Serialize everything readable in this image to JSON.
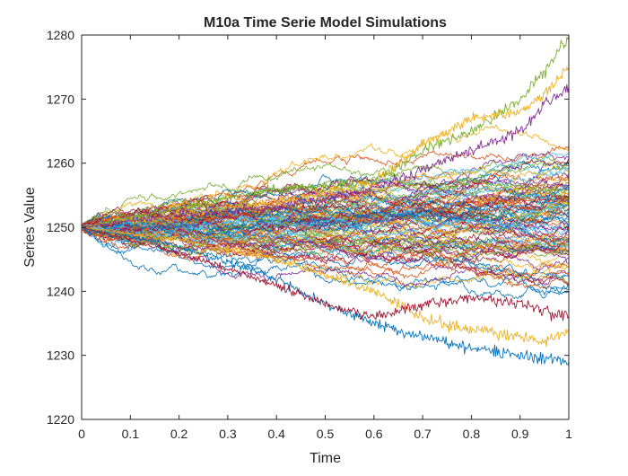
{
  "chart_data": {
    "type": "line",
    "title": "M10a Time Serie Model Simulations",
    "xlabel": "Time",
    "ylabel": "Series Value",
    "xlim": [
      0,
      1
    ],
    "ylim": [
      1220,
      1280
    ],
    "xticks": [
      "0",
      "0.1",
      "0.2",
      "0.3",
      "0.4",
      "0.5",
      "0.6",
      "0.7",
      "0.8",
      "0.9",
      "1"
    ],
    "yticks": [
      "1220",
      "1230",
      "1240",
      "1250",
      "1260",
      "1270",
      "1280"
    ],
    "grid": false,
    "legend": "none",
    "start_value": 1250,
    "series_count": 100,
    "colors": [
      "#0072BD",
      "#D95319",
      "#EDB120",
      "#7E2F8E",
      "#77AC30",
      "#4DBEEE",
      "#A2142F"
    ],
    "highlighted_paths": [
      {
        "color": "#77AC30",
        "x": [
          0,
          0.2,
          0.4,
          0.6,
          0.7,
          0.8,
          0.9,
          0.95,
          1.0
        ],
        "values": [
          1250,
          1253,
          1256,
          1257,
          1262,
          1265,
          1270,
          1274,
          1280
        ]
      },
      {
        "color": "#EDB120",
        "x": [
          0,
          0.2,
          0.4,
          0.6,
          0.7,
          0.8,
          0.9,
          0.95,
          1.0
        ],
        "values": [
          1250,
          1252,
          1254,
          1257,
          1263,
          1267,
          1268,
          1271,
          1275
        ]
      },
      {
        "color": "#7E2F8E",
        "x": [
          0,
          0.2,
          0.4,
          0.6,
          0.7,
          0.8,
          0.9,
          0.95,
          1.0
        ],
        "values": [
          1250,
          1252,
          1253,
          1256,
          1259,
          1262,
          1265,
          1269,
          1272
        ]
      },
      {
        "color": "#0072BD",
        "x": [
          0,
          0.2,
          0.4,
          0.5,
          0.6,
          0.7,
          0.8,
          0.9,
          1.0
        ],
        "values": [
          1250,
          1247,
          1242,
          1238,
          1235,
          1233,
          1231,
          1230,
          1229
        ]
      },
      {
        "color": "#EDB120",
        "x": [
          0,
          0.2,
          0.4,
          0.6,
          0.7,
          0.8,
          0.9,
          0.95,
          1.0
        ],
        "values": [
          1250,
          1248,
          1245,
          1240,
          1236,
          1234,
          1233,
          1232,
          1234
        ]
      },
      {
        "color": "#A2142F",
        "x": [
          0,
          0.2,
          0.4,
          0.5,
          0.6,
          0.7,
          0.8,
          0.9,
          1.0
        ],
        "values": [
          1250,
          1246,
          1241,
          1238,
          1236,
          1238,
          1239,
          1238,
          1236
        ]
      }
    ]
  }
}
